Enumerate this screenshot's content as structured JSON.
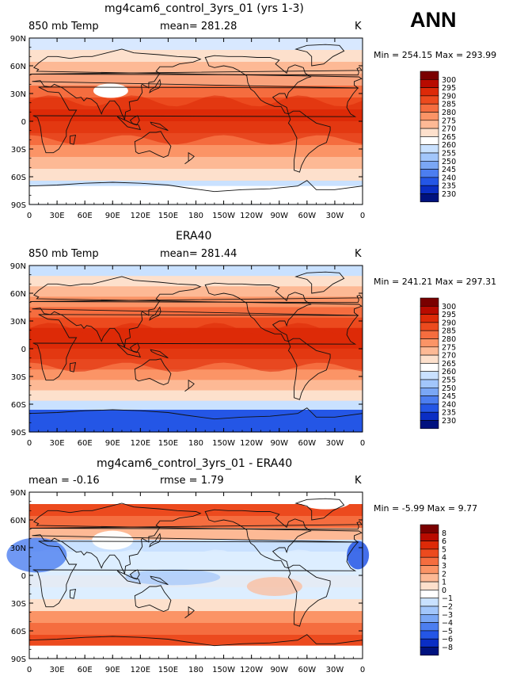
{
  "season_label": "ANN",
  "panels": [
    {
      "title": "mg4cam6_control_3yrs_01 (yrs 1-3)",
      "left_label": "850 mb Temp",
      "center_label": "mean= 281.28",
      "right_label": "K",
      "min_max": "Min = 254.15 Max = 293.99",
      "colorbar_labels": [
        "300",
        "295",
        "290",
        "285",
        "280",
        "275",
        "270",
        "265",
        "260",
        "255",
        "250",
        "245",
        "240",
        "235",
        "230"
      ],
      "colorbar_colors": [
        "#7a0000",
        "#b80b00",
        "#dd2a08",
        "#ec4a1e",
        "#f56d3f",
        "#fb9466",
        "#fdb995",
        "#fde0cc",
        "#ffffff",
        "#c9e1ff",
        "#a2c6fb",
        "#7aa7f5",
        "#4c7ef0",
        "#2456e6",
        "#0a2ec4",
        "#00127f"
      ],
      "bands": [
        "#d8e8ff",
        "#fde0cc",
        "#fdb995",
        "#f9a27c",
        "#f56d3f",
        "#ec4a1e",
        "#dd2a08",
        "#ec4a1e",
        "#f56d3f",
        "#fb9466",
        "#fdb995",
        "#fde0cc",
        "#c9e1ff",
        "#a2c6fb"
      ]
    },
    {
      "title": "ERA40",
      "left_label": "850 mb Temp",
      "center_label": "mean= 281.44",
      "right_label": "K",
      "min_max": "Min = 241.21 Max = 297.31",
      "colorbar_labels": [
        "300",
        "295",
        "290",
        "285",
        "280",
        "275",
        "270",
        "265",
        "260",
        "255",
        "250",
        "245",
        "240",
        "235",
        "230"
      ],
      "colorbar_colors": [
        "#7a0000",
        "#b80b00",
        "#dd2a08",
        "#ec4a1e",
        "#f56d3f",
        "#fb9466",
        "#fdb995",
        "#fde0cc",
        "#ffffff",
        "#c9e1ff",
        "#a2c6fb",
        "#7aa7f5",
        "#4c7ef0",
        "#2456e6",
        "#0a2ec4",
        "#00127f"
      ],
      "bands": [
        "#c9e1ff",
        "#fde0cc",
        "#fdb995",
        "#fb9466",
        "#f56d3f",
        "#ec4a1e",
        "#dd2a08",
        "#dd2a08",
        "#ec4a1e",
        "#f56d3f",
        "#fb9466",
        "#fdb995",
        "#fde0cc",
        "#c9e1ff",
        "#4c7ef0",
        "#0a2ec4"
      ]
    },
    {
      "title": "mg4cam6_control_3yrs_01 - ERA40",
      "left_label": "mean =  -0.16",
      "center_label": "rmse =    1.79",
      "right_label": "K",
      "min_max": "Min =   -5.99 Max =    9.77",
      "colorbar_labels": [
        "8",
        "6",
        "5",
        "4",
        "3",
        "2",
        "1",
        "0",
        "−1",
        "−2",
        "−3",
        "−4",
        "−5",
        "−6",
        "−8"
      ],
      "colorbar_colors": [
        "#7a0000",
        "#b80b00",
        "#dd2a08",
        "#ec4a1e",
        "#f56d3f",
        "#fb9466",
        "#fdb995",
        "#fde0cc",
        "#ffffff",
        "#c9e1ff",
        "#a2c6fb",
        "#7aa7f5",
        "#4c7ef0",
        "#2456e6",
        "#0a2ec4",
        "#00127f"
      ],
      "bands": [
        "#ffffff",
        "#ec4a1e",
        "#f56d3f",
        "#fdb995",
        "#c9e1ff",
        "#ddeeff",
        "#ddeeff",
        "#fde0cc",
        "#ddeeff",
        "#fde0cc",
        "#fb9466",
        "#f56d3f",
        "#ec4a1e",
        "#ffffff"
      ]
    }
  ],
  "x_ticks": [
    "0",
    "30E",
    "60E",
    "90E",
    "120E",
    "150E",
    "180",
    "150W",
    "120W",
    "90W",
    "60W",
    "30W",
    "0"
  ],
  "y_ticks": [
    "90N",
    "60N",
    "30N",
    "0",
    "30S",
    "60S",
    "90S"
  ]
}
